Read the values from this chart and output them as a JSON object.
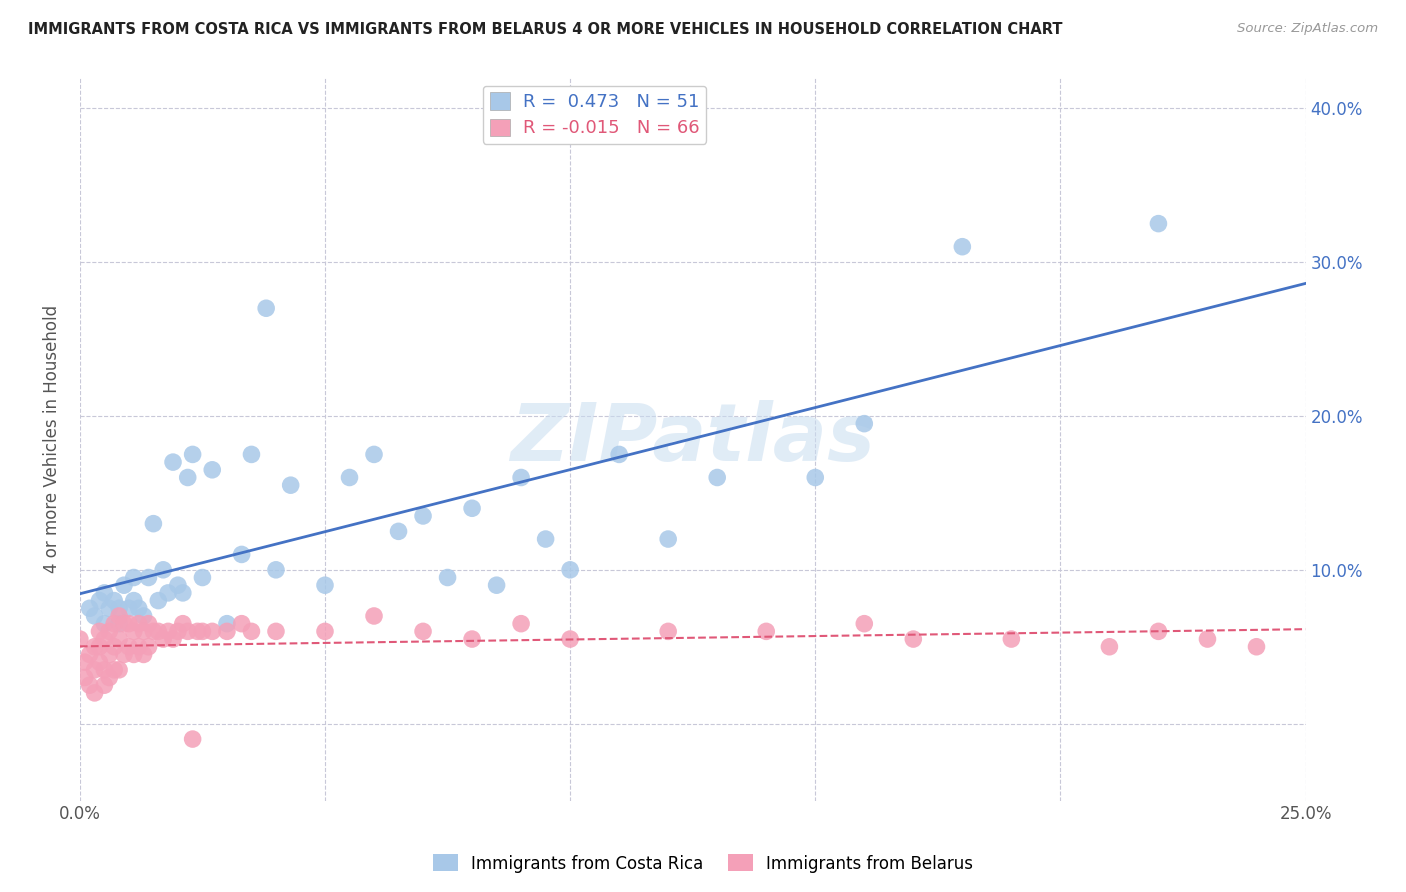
{
  "title": "IMMIGRANTS FROM COSTA RICA VS IMMIGRANTS FROM BELARUS 4 OR MORE VEHICLES IN HOUSEHOLD CORRELATION CHART",
  "source": "Source: ZipAtlas.com",
  "ylabel": "4 or more Vehicles in Household",
  "xlim": [
    0.0,
    0.25
  ],
  "ylim": [
    -0.05,
    0.42
  ],
  "xticks": [
    0.0,
    0.05,
    0.1,
    0.15,
    0.2,
    0.25
  ],
  "xticklabels": [
    "0.0%",
    "",
    "",
    "",
    "",
    "25.0%"
  ],
  "yticks": [
    0.0,
    0.1,
    0.2,
    0.3,
    0.4
  ],
  "right_yticklabels": [
    "",
    "10.0%",
    "20.0%",
    "30.0%",
    "40.0%"
  ],
  "watermark": "ZIPatlas",
  "costa_rica_R": 0.473,
  "costa_rica_N": 51,
  "belarus_R": -0.015,
  "belarus_N": 66,
  "costa_rica_color": "#a8c8e8",
  "belarus_color": "#f4a0b8",
  "costa_rica_line_color": "#4472c4",
  "belarus_line_color": "#e05878",
  "background_color": "#ffffff",
  "grid_color": "#c8c8d8",
  "costa_rica_x": [
    0.002,
    0.003,
    0.004,
    0.005,
    0.005,
    0.006,
    0.007,
    0.008,
    0.008,
    0.009,
    0.01,
    0.011,
    0.011,
    0.012,
    0.013,
    0.014,
    0.015,
    0.016,
    0.017,
    0.018,
    0.019,
    0.02,
    0.021,
    0.022,
    0.023,
    0.025,
    0.027,
    0.03,
    0.033,
    0.035,
    0.038,
    0.04,
    0.043,
    0.05,
    0.055,
    0.06,
    0.065,
    0.07,
    0.075,
    0.08,
    0.085,
    0.09,
    0.095,
    0.1,
    0.11,
    0.12,
    0.13,
    0.15,
    0.16,
    0.18,
    0.22
  ],
  "costa_rica_y": [
    0.075,
    0.07,
    0.08,
    0.085,
    0.065,
    0.075,
    0.08,
    0.075,
    0.065,
    0.09,
    0.075,
    0.08,
    0.095,
    0.075,
    0.07,
    0.095,
    0.13,
    0.08,
    0.1,
    0.085,
    0.17,
    0.09,
    0.085,
    0.16,
    0.175,
    0.095,
    0.165,
    0.065,
    0.11,
    0.175,
    0.27,
    0.1,
    0.155,
    0.09,
    0.16,
    0.175,
    0.125,
    0.135,
    0.095,
    0.14,
    0.09,
    0.16,
    0.12,
    0.1,
    0.175,
    0.12,
    0.16,
    0.16,
    0.195,
    0.31,
    0.325
  ],
  "belarus_x": [
    0.0,
    0.001,
    0.001,
    0.002,
    0.002,
    0.003,
    0.003,
    0.003,
    0.004,
    0.004,
    0.004,
    0.005,
    0.005,
    0.005,
    0.006,
    0.006,
    0.006,
    0.007,
    0.007,
    0.007,
    0.008,
    0.008,
    0.008,
    0.009,
    0.009,
    0.01,
    0.01,
    0.011,
    0.011,
    0.012,
    0.012,
    0.013,
    0.013,
    0.014,
    0.014,
    0.015,
    0.016,
    0.017,
    0.018,
    0.019,
    0.02,
    0.021,
    0.022,
    0.023,
    0.024,
    0.025,
    0.027,
    0.03,
    0.033,
    0.035,
    0.04,
    0.05,
    0.06,
    0.07,
    0.08,
    0.09,
    0.1,
    0.12,
    0.14,
    0.16,
    0.17,
    0.19,
    0.21,
    0.22,
    0.23,
    0.24
  ],
  "belarus_y": [
    0.055,
    0.04,
    0.03,
    0.045,
    0.025,
    0.05,
    0.035,
    0.02,
    0.05,
    0.04,
    0.06,
    0.055,
    0.035,
    0.025,
    0.06,
    0.045,
    0.03,
    0.065,
    0.05,
    0.035,
    0.07,
    0.055,
    0.035,
    0.065,
    0.045,
    0.065,
    0.05,
    0.06,
    0.045,
    0.065,
    0.05,
    0.06,
    0.045,
    0.065,
    0.05,
    0.06,
    0.06,
    0.055,
    0.06,
    0.055,
    0.06,
    0.065,
    0.06,
    -0.01,
    0.06,
    0.06,
    0.06,
    0.06,
    0.065,
    0.06,
    0.06,
    0.06,
    0.07,
    0.06,
    0.055,
    0.065,
    0.055,
    0.06,
    0.06,
    0.065,
    0.055,
    0.055,
    0.05,
    0.06,
    0.055,
    0.05
  ]
}
